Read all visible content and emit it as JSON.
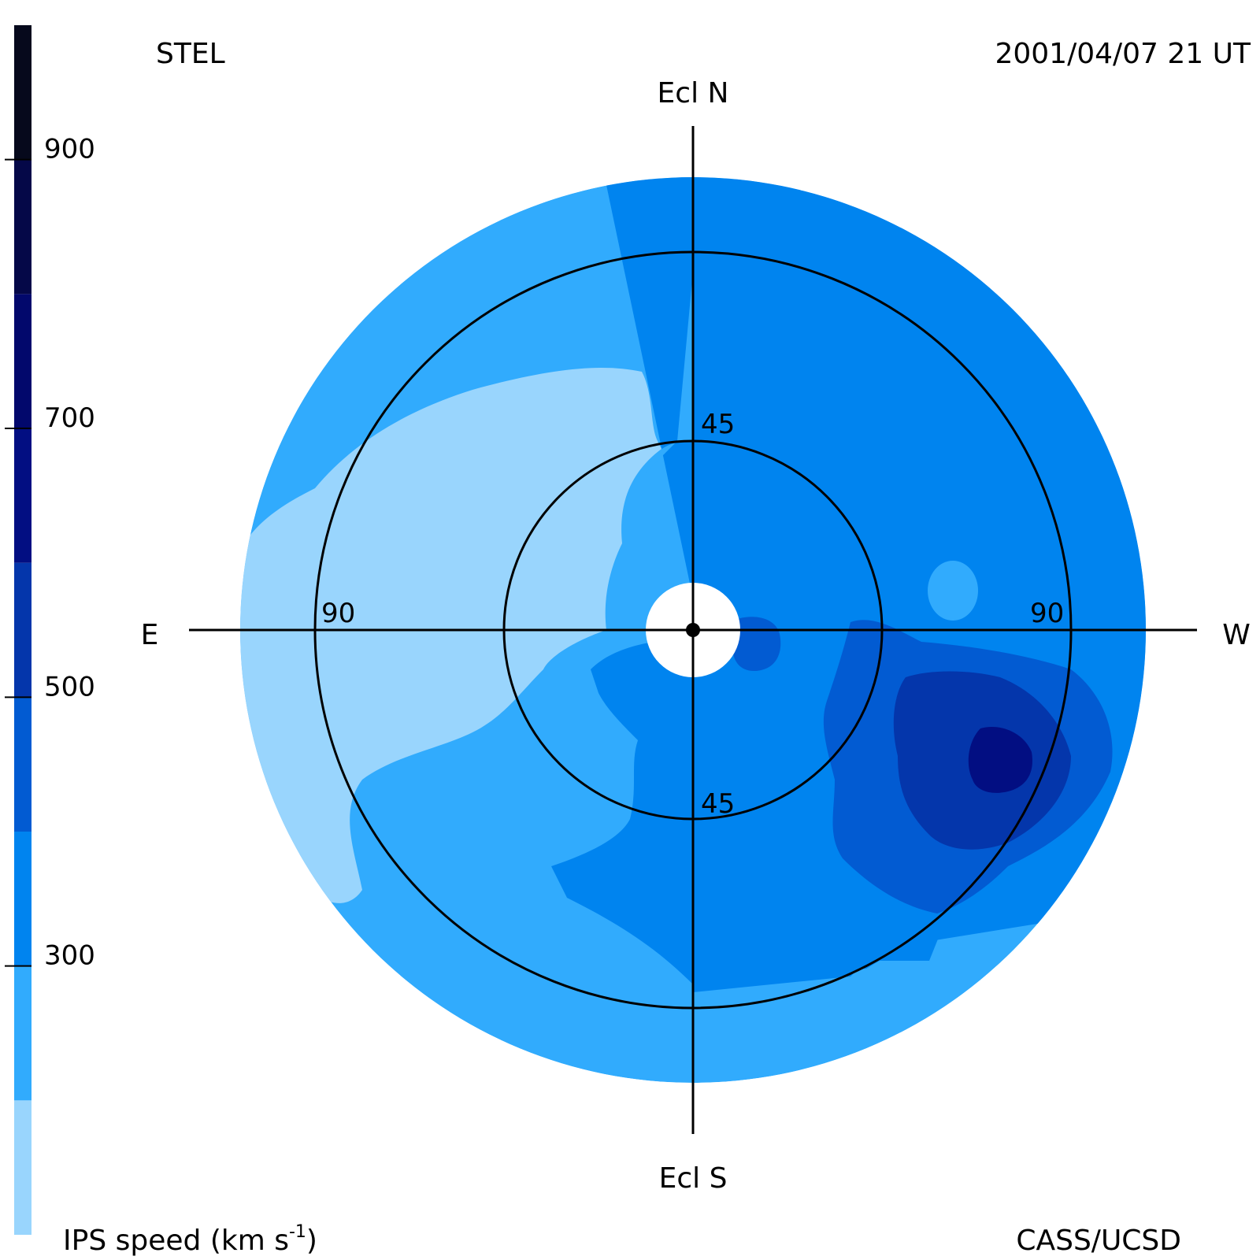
{
  "header": {
    "observatory": "STEL",
    "timestamp": "2001/04/07 21 UT"
  },
  "footer": {
    "colorbar_title": "IPS speed (km s",
    "colorbar_title_exp": "-1",
    "colorbar_title_close": ")",
    "credit": "CASS/UCSD"
  },
  "directions": {
    "north": "Ecl N",
    "south": "Ecl S",
    "east": "E",
    "west": "W"
  },
  "elongation_rings": {
    "inner_north": "45",
    "inner_south": "45",
    "outer_east": "90",
    "outer_west": "90"
  },
  "colorbar": {
    "min": 100,
    "max": 1000,
    "bands": [
      {
        "from": 100,
        "to": 200,
        "color": "#99d5fd"
      },
      {
        "from": 200,
        "to": 300,
        "color": "#31abfd"
      },
      {
        "from": 300,
        "to": 400,
        "color": "#0084ef"
      },
      {
        "from": 400,
        "to": 500,
        "color": "#025bd2"
      },
      {
        "from": 500,
        "to": 600,
        "color": "#0436ab"
      },
      {
        "from": 600,
        "to": 700,
        "color": "#020e82"
      },
      {
        "from": 700,
        "to": 800,
        "color": "#02086c"
      },
      {
        "from": 800,
        "to": 900,
        "color": "#050848"
      },
      {
        "from": 900,
        "to": 1000,
        "color": "#06091c"
      }
    ],
    "ticks": [
      {
        "value": 300,
        "label": "300"
      },
      {
        "value": 500,
        "label": "500"
      },
      {
        "value": 700,
        "label": "700"
      },
      {
        "value": 900,
        "label": "900"
      }
    ]
  },
  "map_colors": {
    "c200": "#99d5fd",
    "c300": "#31abfd",
    "c400": "#0084ef",
    "c500": "#025bd2",
    "c600": "#0436ab",
    "c700": "#020e82"
  }
}
